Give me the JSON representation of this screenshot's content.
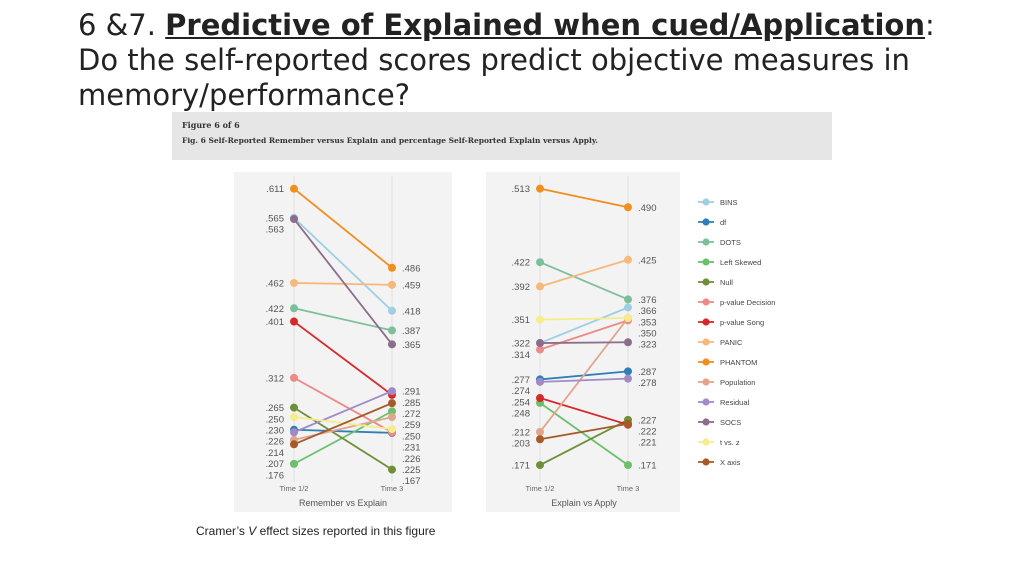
{
  "slide": {
    "title_prefix": "6 &7. ",
    "title_bold": "Predictive of Explained when cued/Application",
    "title_rest": ": Do the self-reported scores predict objective measures in memory/performance?",
    "figure_number": "Figure 6 of 6",
    "figure_caption": "Fig. 6 Self-Reported Remember versus Explain and percentage Self-Reported Explain versus Apply.",
    "footnote_pre": "Cramer’s ",
    "footnote_v": "V",
    "footnote_post": " effect sizes reported in this figure"
  },
  "chart_data": [
    {
      "type": "line",
      "title": "",
      "xlabel": "Remember vs Explain",
      "categories": [
        "Time 1/2",
        "Time 3"
      ],
      "ylim": [
        0.16,
        0.62
      ],
      "series": [
        {
          "name": "BINS",
          "color": "#9fcfe3",
          "values": [
            0.565,
            0.418
          ],
          "labels": [
            ".565",
            ".418"
          ]
        },
        {
          "name": "df",
          "color": "#2f7fb7",
          "values": [
            0.23,
            0.225
          ],
          "labels": [
            ".230",
            ".225"
          ]
        },
        {
          "name": "DOTS",
          "color": "#7dbf9b",
          "values": [
            0.422,
            0.387
          ],
          "labels": [
            ".422",
            ".387"
          ]
        },
        {
          "name": "Left Skewed",
          "color": "#6cc06b",
          "values": [
            0.176,
            0.259
          ],
          "labels": [
            ".176",
            ".259"
          ]
        },
        {
          "name": "Null",
          "color": "#6f8f3a",
          "values": [
            0.265,
            0.167
          ],
          "labels": [
            ".265",
            ".167"
          ]
        },
        {
          "name": "p-value Decision",
          "color": "#ec8a88",
          "values": [
            0.312,
            0.226
          ],
          "labels": [
            ".312",
            ".226"
          ]
        },
        {
          "name": "p-value Song",
          "color": "#d6272b",
          "values": [
            0.401,
            0.285
          ],
          "labels": [
            ".401",
            ".285"
          ]
        },
        {
          "name": "PANIC",
          "color": "#f7b97b",
          "values": [
            0.462,
            0.459
          ],
          "labels": [
            ".462",
            ".459"
          ]
        },
        {
          "name": "PHANTOM",
          "color": "#f28e1c",
          "values": [
            0.611,
            0.486
          ],
          "labels": [
            ".611",
            ".486"
          ]
        },
        {
          "name": "Population",
          "color": "#e2a58c",
          "values": [
            0.214,
            0.25
          ],
          "labels": [
            ".214",
            ".250"
          ]
        },
        {
          "name": "Residual",
          "color": "#a08bc8",
          "values": [
            0.226,
            0.291
          ],
          "labels": [
            ".226",
            ".291"
          ]
        },
        {
          "name": "SOCS",
          "color": "#8b6d8c",
          "values": [
            0.563,
            0.365
          ],
          "labels": [
            ".563",
            ".365"
          ]
        },
        {
          "name": "t vs. z",
          "color": "#f5ec8c",
          "values": [
            0.25,
            0.231
          ],
          "labels": [
            ".250",
            ".231"
          ]
        },
        {
          "name": "X axis",
          "color": "#a65a2a",
          "values": [
            0.207,
            0.272
          ],
          "labels": [
            ".207",
            ".272"
          ]
        }
      ]
    },
    {
      "type": "line",
      "title": "",
      "xlabel": "Explain vs Apply",
      "categories": [
        "Time 1/2",
        "Time 3"
      ],
      "ylim": [
        0.16,
        0.52
      ],
      "series": [
        {
          "name": "BINS",
          "color": "#9fcfe3",
          "values": [
            0.322,
            0.366
          ],
          "labels": [
            ".322",
            ".366"
          ]
        },
        {
          "name": "df",
          "color": "#2f7fb7",
          "values": [
            0.277,
            0.287
          ],
          "labels": [
            ".277",
            ".287"
          ]
        },
        {
          "name": "DOTS",
          "color": "#7dbf9b",
          "values": [
            0.422,
            0.376
          ],
          "labels": [
            ".422",
            ".376"
          ]
        },
        {
          "name": "Left Skewed",
          "color": "#6cc06b",
          "values": [
            0.248,
            0.171
          ],
          "labels": [
            ".248",
            ".171"
          ]
        },
        {
          "name": "Null",
          "color": "#6f8f3a",
          "values": [
            0.171,
            0.227
          ],
          "labels": [
            ".171",
            ".227"
          ]
        },
        {
          "name": "p-value Decision",
          "color": "#ec8a88",
          "values": [
            0.314,
            0.35
          ],
          "labels": [
            ".314",
            ".350"
          ]
        },
        {
          "name": "p-value Song",
          "color": "#d6272b",
          "values": [
            0.254,
            0.221
          ],
          "labels": [
            ".254",
            ".221"
          ]
        },
        {
          "name": "PANIC",
          "color": "#f7b97b",
          "values": [
            0.392,
            0.425
          ],
          "labels": [
            ".392",
            ".425"
          ]
        },
        {
          "name": "PHANTOM",
          "color": "#f28e1c",
          "values": [
            0.513,
            0.49
          ],
          "labels": [
            ".513",
            ".490"
          ]
        },
        {
          "name": "Population",
          "color": "#e2a58c",
          "values": [
            0.212,
            0.353
          ],
          "labels": [
            ".212",
            ""
          ]
        },
        {
          "name": "Residual",
          "color": "#a08bc8",
          "values": [
            0.274,
            0.278
          ],
          "labels": [
            ".274",
            ".278"
          ]
        },
        {
          "name": "SOCS",
          "color": "#8b6d8c",
          "values": [
            0.322,
            0.323
          ],
          "labels": [
            "",
            ".323"
          ]
        },
        {
          "name": "t vs. z",
          "color": "#f5ec8c",
          "values": [
            0.351,
            0.353
          ],
          "labels": [
            ".351",
            ".353"
          ]
        },
        {
          "name": "X axis",
          "color": "#a65a2a",
          "values": [
            0.203,
            0.222
          ],
          "labels": [
            ".203",
            ".222"
          ]
        }
      ]
    }
  ]
}
